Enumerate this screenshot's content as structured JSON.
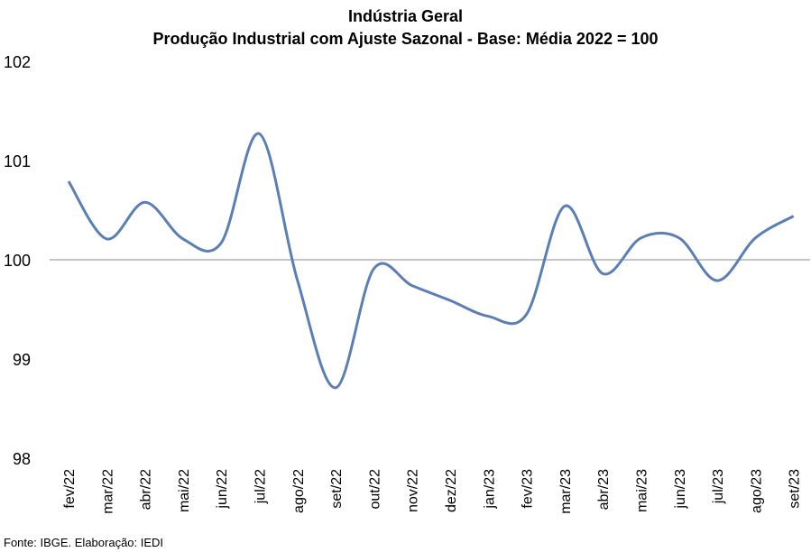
{
  "chart_data": {
    "type": "line",
    "title": "Indústria Geral",
    "subtitle": "Produção Industrial com Ajuste Sazonal - Base: Média 2022 = 100",
    "xlabel": "",
    "ylabel": "",
    "ylim": [
      98,
      102
    ],
    "yticks": [
      "98",
      "99",
      "100",
      "101",
      "102"
    ],
    "reference_line": 100,
    "grid": false,
    "legend": "none",
    "categories": [
      "fev/22",
      "mar/22",
      "abr/22",
      "mai/22",
      "jun/22",
      "jul/22",
      "ago/22",
      "set/22",
      "out/22",
      "nov/22",
      "dez/22",
      "jan/23",
      "fev/23",
      "mar/23",
      "abr/23",
      "mai/23",
      "jun/23",
      "jul/23",
      "ago/23",
      "set/23"
    ],
    "series": [
      {
        "values": [
          100.79,
          100.21,
          100.58,
          100.21,
          100.17,
          101.27,
          99.79,
          98.71,
          99.91,
          99.74,
          99.59,
          99.43,
          99.45,
          100.54,
          99.86,
          100.22,
          100.22,
          99.79,
          100.22,
          100.44
        ],
        "color": "#5b7fb5"
      }
    ],
    "source": "Fonte: IBGE. Elaboração: IEDI"
  }
}
